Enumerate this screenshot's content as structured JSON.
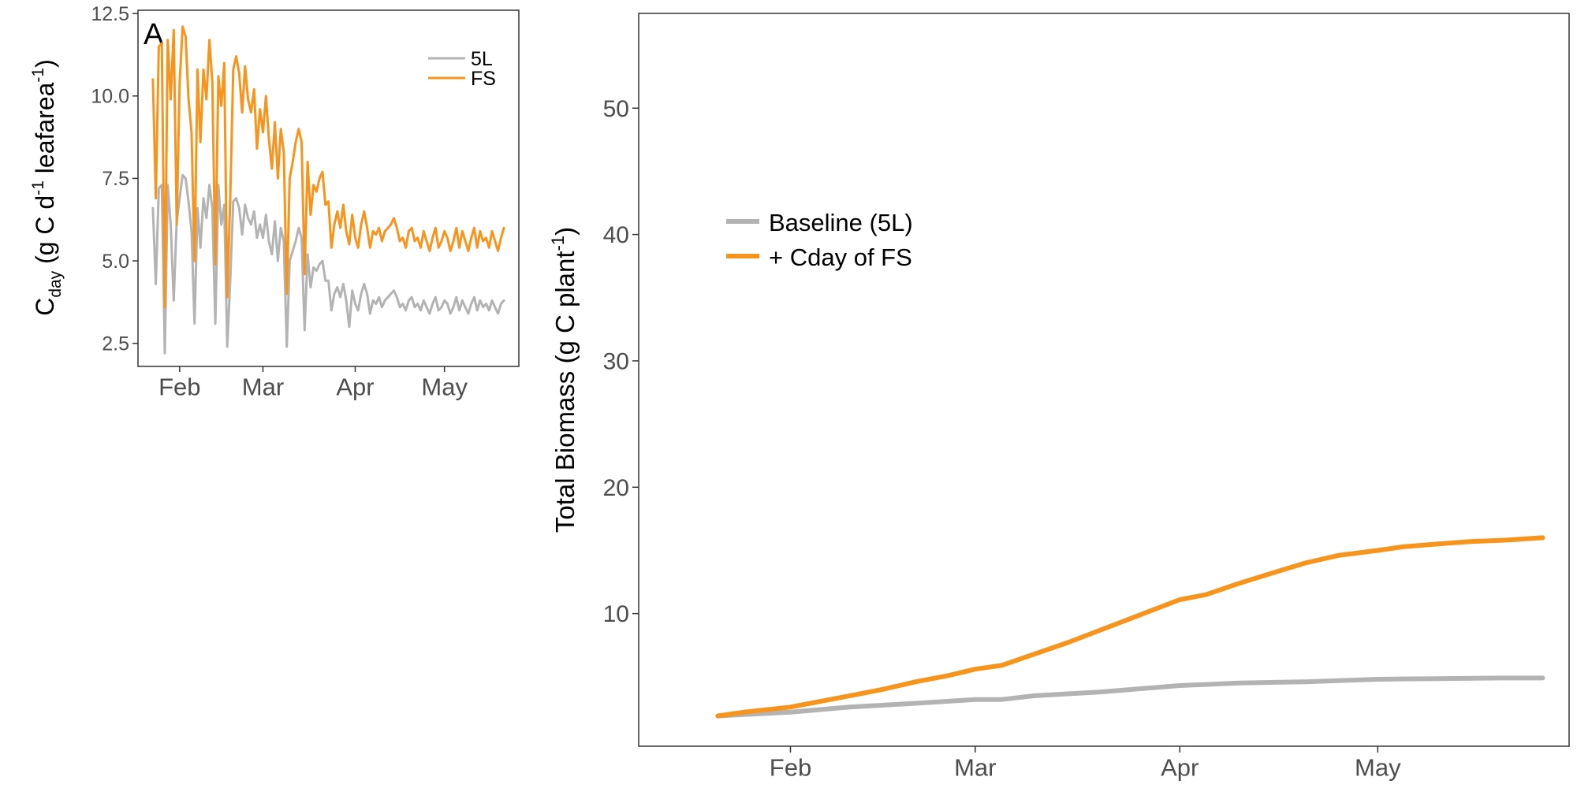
{
  "chart_data": [
    {
      "type": "line",
      "panel_label": "A",
      "title": "",
      "xlabel": "",
      "ylabel": {
        "base": "C",
        "sub": "day",
        "rest": " (g C d",
        "sup1": "-1",
        "mid": " leafarea",
        "sup2": "-1",
        "end": ")"
      },
      "xlim": [
        "2015-01-18",
        "2015-05-26"
      ],
      "ylim": [
        1.8,
        12.6
      ],
      "x_ticks": [
        {
          "date": "2015-02-01",
          "label": "Feb"
        },
        {
          "date": "2015-03-01",
          "label": "Mar"
        },
        {
          "date": "2015-04-01",
          "label": "Apr"
        },
        {
          "date": "2015-05-01",
          "label": "May"
        }
      ],
      "y_ticks": [
        {
          "value": 2.5,
          "label": "2.5"
        },
        {
          "value": 5.0,
          "label": "5.0"
        },
        {
          "value": 7.5,
          "label": "7.5"
        },
        {
          "value": 10.0,
          "label": "10.0"
        },
        {
          "value": 12.5,
          "label": "12.5"
        }
      ],
      "grid": false,
      "legend": "top-right",
      "series": [
        {
          "name": "5L",
          "color": "#b3b3b3",
          "x": [
            "2015-01-23",
            "2015-01-24",
            "2015-01-25",
            "2015-01-26",
            "2015-01-27",
            "2015-01-28",
            "2015-01-29",
            "2015-01-30",
            "2015-01-31",
            "2015-02-01",
            "2015-02-02",
            "2015-02-03",
            "2015-02-04",
            "2015-02-05",
            "2015-02-06",
            "2015-02-07",
            "2015-02-08",
            "2015-02-09",
            "2015-02-10",
            "2015-02-11",
            "2015-02-12",
            "2015-02-13",
            "2015-02-14",
            "2015-02-15",
            "2015-02-16",
            "2015-02-17",
            "2015-02-18",
            "2015-02-19",
            "2015-02-20",
            "2015-02-21",
            "2015-02-22",
            "2015-02-23",
            "2015-02-24",
            "2015-02-25",
            "2015-02-26",
            "2015-02-27",
            "2015-02-28",
            "2015-03-01",
            "2015-03-02",
            "2015-03-03",
            "2015-03-04",
            "2015-03-05",
            "2015-03-06",
            "2015-03-07",
            "2015-03-08",
            "2015-03-09",
            "2015-03-10",
            "2015-03-11",
            "2015-03-12",
            "2015-03-13",
            "2015-03-14",
            "2015-03-15",
            "2015-03-16",
            "2015-03-17",
            "2015-03-18",
            "2015-03-19",
            "2015-03-20",
            "2015-03-21",
            "2015-03-22",
            "2015-03-23",
            "2015-03-24",
            "2015-03-25",
            "2015-03-26",
            "2015-03-27",
            "2015-03-28",
            "2015-03-29",
            "2015-03-30",
            "2015-03-31",
            "2015-04-01",
            "2015-04-02",
            "2015-04-03",
            "2015-04-04",
            "2015-04-05",
            "2015-04-06",
            "2015-04-07",
            "2015-04-08",
            "2015-04-09",
            "2015-04-10",
            "2015-04-11",
            "2015-04-12",
            "2015-04-13",
            "2015-04-14",
            "2015-04-15",
            "2015-04-16",
            "2015-04-17",
            "2015-04-18",
            "2015-04-19",
            "2015-04-20",
            "2015-04-21",
            "2015-04-22",
            "2015-04-23",
            "2015-04-24",
            "2015-04-25",
            "2015-04-26",
            "2015-04-27",
            "2015-04-28",
            "2015-04-29",
            "2015-04-30",
            "2015-05-01",
            "2015-05-02",
            "2015-05-03",
            "2015-05-04",
            "2015-05-05",
            "2015-05-06",
            "2015-05-07",
            "2015-05-08",
            "2015-05-09",
            "2015-05-10",
            "2015-05-11",
            "2015-05-12",
            "2015-05-13",
            "2015-05-14",
            "2015-05-15",
            "2015-05-16",
            "2015-05-17",
            "2015-05-18",
            "2015-05-19",
            "2015-05-20",
            "2015-05-21"
          ],
          "y": [
            6.6,
            4.3,
            7.2,
            7.3,
            2.2,
            7.3,
            6.1,
            3.8,
            6.2,
            6.9,
            7.6,
            7.5,
            6.8,
            5.9,
            3.1,
            6.6,
            5.4,
            6.9,
            6.3,
            7.3,
            6.6,
            3.1,
            7.3,
            6.1,
            6.7,
            2.4,
            4.4,
            6.8,
            6.9,
            6.6,
            5.8,
            6.7,
            6.3,
            6.1,
            6.5,
            5.7,
            6.1,
            5.7,
            6.4,
            5.6,
            5.2,
            6.2,
            5.0,
            6.0,
            5.6,
            2.4,
            5.0,
            5.3,
            5.6,
            6.0,
            5.7,
            2.9,
            5.2,
            4.2,
            4.8,
            4.7,
            4.9,
            5.0,
            4.4,
            4.4,
            3.5,
            4.0,
            4.2,
            3.9,
            4.3,
            3.8,
            3.0,
            4.1,
            3.7,
            3.5,
            4.0,
            4.3,
            4.0,
            3.4,
            3.8,
            3.7,
            3.9,
            3.6,
            3.8,
            3.9,
            4.0,
            4.1,
            3.9,
            3.6,
            3.7,
            3.5,
            3.8,
            3.9,
            3.6,
            3.7,
            3.5,
            3.8,
            3.6,
            3.4,
            3.7,
            3.9,
            3.5,
            3.6,
            3.8,
            3.7,
            3.4,
            3.6,
            3.9,
            3.5,
            3.8,
            3.6,
            3.4,
            3.7,
            3.9,
            3.5,
            3.8,
            3.6,
            3.7,
            3.5,
            3.8,
            3.6,
            3.4,
            3.7,
            3.8
          ]
        },
        {
          "name": "FS",
          "color": "#f7941d",
          "x": [
            "2015-01-23",
            "2015-01-24",
            "2015-01-25",
            "2015-01-26",
            "2015-01-27",
            "2015-01-28",
            "2015-01-29",
            "2015-01-30",
            "2015-01-31",
            "2015-02-01",
            "2015-02-02",
            "2015-02-03",
            "2015-02-04",
            "2015-02-05",
            "2015-02-06",
            "2015-02-07",
            "2015-02-08",
            "2015-02-09",
            "2015-02-10",
            "2015-02-11",
            "2015-02-12",
            "2015-02-13",
            "2015-02-14",
            "2015-02-15",
            "2015-02-16",
            "2015-02-17",
            "2015-02-18",
            "2015-02-19",
            "2015-02-20",
            "2015-02-21",
            "2015-02-22",
            "2015-02-23",
            "2015-02-24",
            "2015-02-25",
            "2015-02-26",
            "2015-02-27",
            "2015-02-28",
            "2015-03-01",
            "2015-03-02",
            "2015-03-03",
            "2015-03-04",
            "2015-03-05",
            "2015-03-06",
            "2015-03-07",
            "2015-03-08",
            "2015-03-09",
            "2015-03-10",
            "2015-03-11",
            "2015-03-12",
            "2015-03-13",
            "2015-03-14",
            "2015-03-15",
            "2015-03-16",
            "2015-03-17",
            "2015-03-18",
            "2015-03-19",
            "2015-03-20",
            "2015-03-21",
            "2015-03-22",
            "2015-03-23",
            "2015-03-24",
            "2015-03-25",
            "2015-03-26",
            "2015-03-27",
            "2015-03-28",
            "2015-03-29",
            "2015-03-30",
            "2015-03-31",
            "2015-04-01",
            "2015-04-02",
            "2015-04-03",
            "2015-04-04",
            "2015-04-05",
            "2015-04-06",
            "2015-04-07",
            "2015-04-08",
            "2015-04-09",
            "2015-04-10",
            "2015-04-11",
            "2015-04-12",
            "2015-04-13",
            "2015-04-14",
            "2015-04-15",
            "2015-04-16",
            "2015-04-17",
            "2015-04-18",
            "2015-04-19",
            "2015-04-20",
            "2015-04-21",
            "2015-04-22",
            "2015-04-23",
            "2015-04-24",
            "2015-04-25",
            "2015-04-26",
            "2015-04-27",
            "2015-04-28",
            "2015-04-29",
            "2015-04-30",
            "2015-05-01",
            "2015-05-02",
            "2015-05-03",
            "2015-05-04",
            "2015-05-05",
            "2015-05-06",
            "2015-05-07",
            "2015-05-08",
            "2015-05-09",
            "2015-05-10",
            "2015-05-11",
            "2015-05-12",
            "2015-05-13",
            "2015-05-14",
            "2015-05-15",
            "2015-05-16",
            "2015-05-17",
            "2015-05-18",
            "2015-05-19",
            "2015-05-20",
            "2015-05-21"
          ],
          "y": [
            10.5,
            6.9,
            11.5,
            11.6,
            3.6,
            11.7,
            9.9,
            12.0,
            6.1,
            10.4,
            12.1,
            11.8,
            9.9,
            8.9,
            5.0,
            10.8,
            8.6,
            10.8,
            9.9,
            11.7,
            10.4,
            4.9,
            10.6,
            9.7,
            11.0,
            3.9,
            6.9,
            10.8,
            11.2,
            10.7,
            9.5,
            10.9,
            9.9,
            9.5,
            10.2,
            8.4,
            9.6,
            8.9,
            10.0,
            8.7,
            7.8,
            9.2,
            7.5,
            9.0,
            8.3,
            4.0,
            7.5,
            8.0,
            8.6,
            9.0,
            8.6,
            4.6,
            8.0,
            6.4,
            7.3,
            7.1,
            7.5,
            7.7,
            6.7,
            6.8,
            5.4,
            6.1,
            6.5,
            6.0,
            6.7,
            5.9,
            5.5,
            6.4,
            5.7,
            5.4,
            6.1,
            6.5,
            6.0,
            5.4,
            5.9,
            5.8,
            6.0,
            5.6,
            5.9,
            6.0,
            6.1,
            6.3,
            6.0,
            5.6,
            5.7,
            5.4,
            5.9,
            6.0,
            5.6,
            5.7,
            5.4,
            5.9,
            5.6,
            5.3,
            5.7,
            6.0,
            5.4,
            5.6,
            5.9,
            5.7,
            5.3,
            5.6,
            6.0,
            5.4,
            5.9,
            5.6,
            5.3,
            5.7,
            6.0,
            5.4,
            5.9,
            5.6,
            5.7,
            5.4,
            5.9,
            5.6,
            5.3,
            5.7,
            6.0
          ]
        }
      ]
    },
    {
      "type": "line",
      "title": "",
      "xlabel": "",
      "ylabel": {
        "rest": "Total Biomass (g C plant",
        "sup1": "-1",
        "end": ")"
      },
      "xlim": [
        "2015-01-09",
        "2015-05-30"
      ],
      "ylim": [
        -0.5,
        57.5
      ],
      "x_ticks": [
        {
          "date": "2015-02-01",
          "label": "Feb"
        },
        {
          "date": "2015-03-01",
          "label": "Mar"
        },
        {
          "date": "2015-04-01",
          "label": "Apr"
        },
        {
          "date": "2015-05-01",
          "label": "May"
        }
      ],
      "y_ticks": [
        {
          "value": 10,
          "label": "10"
        },
        {
          "value": 20,
          "label": "20"
        },
        {
          "value": 30,
          "label": "30"
        },
        {
          "value": 40,
          "label": "40"
        },
        {
          "value": 50,
          "label": "50"
        }
      ],
      "grid": false,
      "legend": "top-left",
      "series": [
        {
          "name": "Baseline (5L)",
          "color": "#b3b3b3",
          "x": [
            "2015-01-21",
            "2015-02-01",
            "2015-02-10",
            "2015-02-20",
            "2015-03-01",
            "2015-03-05",
            "2015-03-10",
            "2015-03-20",
            "2015-04-01",
            "2015-04-10",
            "2015-04-20",
            "2015-05-01",
            "2015-05-10",
            "2015-05-20",
            "2015-05-26"
          ],
          "y": [
            1.9,
            2.2,
            2.6,
            2.9,
            3.2,
            3.2,
            3.5,
            3.8,
            4.3,
            4.5,
            4.6,
            4.8,
            4.85,
            4.9,
            4.9
          ]
        },
        {
          "name": "+ Cday of FS",
          "color": "#f7941d",
          "x": [
            "2015-01-21",
            "2015-01-25",
            "2015-02-01",
            "2015-02-05",
            "2015-02-10",
            "2015-02-15",
            "2015-02-20",
            "2015-02-25",
            "2015-03-01",
            "2015-03-05",
            "2015-03-10",
            "2015-03-15",
            "2015-03-20",
            "2015-03-25",
            "2015-04-01",
            "2015-04-05",
            "2015-04-10",
            "2015-04-15",
            "2015-04-20",
            "2015-04-25",
            "2015-05-01",
            "2015-05-05",
            "2015-05-10",
            "2015-05-15",
            "2015-05-20",
            "2015-05-26"
          ],
          "y": [
            1.9,
            2.2,
            2.6,
            3.0,
            3.5,
            4.0,
            4.6,
            5.1,
            5.6,
            5.9,
            6.8,
            7.7,
            8.7,
            9.7,
            11.1,
            11.5,
            12.4,
            13.2,
            14.0,
            14.6,
            15.0,
            15.3,
            15.5,
            15.7,
            15.8,
            16.0
          ]
        }
      ]
    }
  ]
}
